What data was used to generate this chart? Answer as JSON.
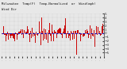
{
  "title": "Milwaukee  Temp(F)  Temp-Normalized  or  Wind(mph)",
  "subtitle": "Wind Dir",
  "bg_color": "#e8e8e8",
  "plot_bg": "#e8e8e8",
  "line_color": "#cc0000",
  "avg_color": "#0000cc",
  "grid_color": "#aaaaaa",
  "y_ticks": [
    -5,
    -4,
    -3,
    -2,
    -1,
    0,
    1,
    2,
    3,
    4,
    5
  ],
  "y_min": -6,
  "y_max": 5,
  "n_points": 288,
  "spike_index": 210,
  "spike_value": -5.5,
  "noise_amplitude": 1.1,
  "seed": 42
}
